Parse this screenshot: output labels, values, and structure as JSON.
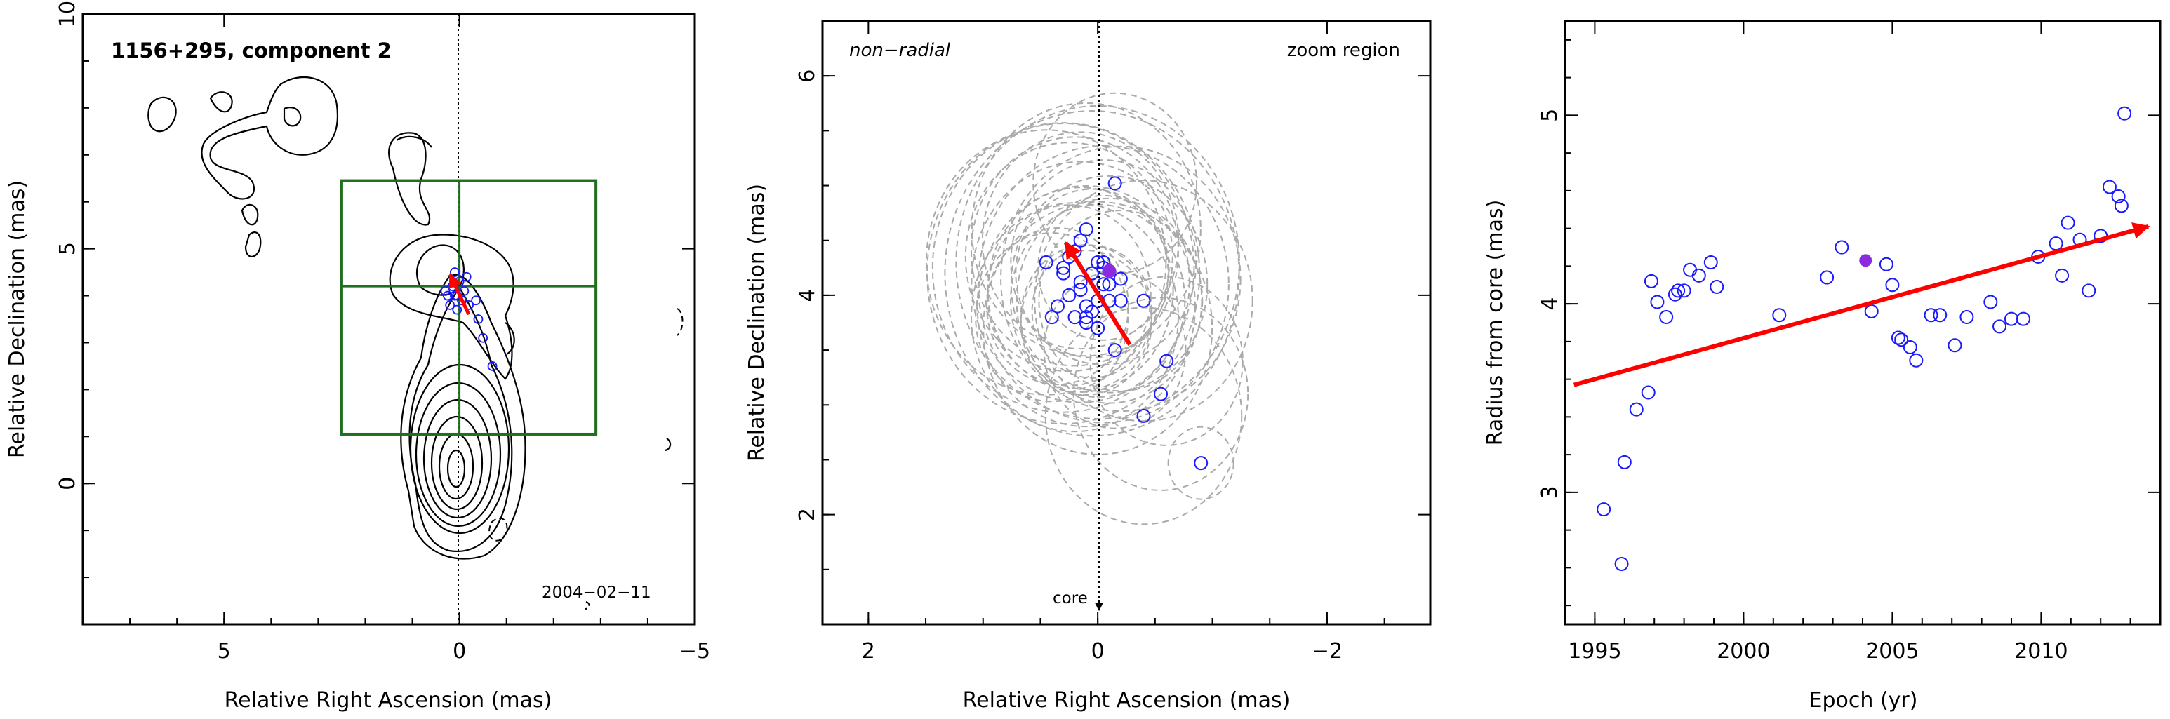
{
  "colors": {
    "axis": "#000000",
    "contour": "#000000",
    "marker_blue": "#1a1aff",
    "marker_purple": "#8a2be2",
    "arrow_red": "#ff0000",
    "zoom_box_green": "#1f6f1f",
    "ellipse_gray": "#aaaaaa"
  },
  "chart_data": [
    {
      "type": "contour",
      "title": "1156+295, component 2",
      "annotation": "2004−02−11",
      "xlabel": "Relative Right Ascension (mas)",
      "ylabel": "Relative Declination (mas)",
      "xlim": [
        8,
        -5
      ],
      "ylim": [
        -3,
        10
      ],
      "xticks": [
        5,
        0,
        -5
      ],
      "yticks": [
        0,
        5,
        10
      ],
      "crosshair_ra": 0,
      "zoom_box": {
        "ra": [
          2.5,
          -2.9
        ],
        "dec": [
          1.05,
          6.45
        ],
        "center": [
          0,
          4.2
        ]
      },
      "components_ra": [
        0.15,
        0.1,
        0.05,
        0.0,
        -0.05,
        -0.1,
        0.2,
        0.25,
        -0.15,
        -0.2,
        0.05,
        0.3,
        -0.35,
        -0.4,
        -0.5,
        -0.7,
        0.1
      ],
      "components_dec": [
        4.2,
        4.5,
        4.0,
        4.3,
        3.9,
        4.1,
        3.8,
        4.0,
        4.4,
        3.8,
        3.7,
        4.1,
        3.9,
        3.5,
        3.1,
        2.5,
        4.0
      ],
      "motion_arrow": {
        "from": [
          -0.2,
          3.6
        ],
        "to": [
          0.2,
          4.45
        ]
      }
    },
    {
      "type": "scatter",
      "annotations": [
        "non−radial",
        "zoom region",
        "core"
      ],
      "xlabel": "Relative Right Ascension (mas)",
      "ylabel": "Relative Declination (mas)",
      "xlim": [
        2.4,
        -2.9
      ],
      "ylim": [
        1.0,
        6.5
      ],
      "xticks": [
        2,
        0,
        -2
      ],
      "yticks": [
        2,
        4,
        6
      ],
      "points_ra": [
        0.1,
        0.2,
        0.3,
        0.15,
        0.05,
        0.0,
        -0.05,
        -0.1,
        -0.2,
        0.25,
        0.35,
        0.1,
        0.0,
        -0.05,
        0.05,
        0.2,
        0.4,
        0.3,
        0.15,
        0.1,
        0.0,
        -0.1,
        -0.2,
        -0.4,
        -0.6,
        -0.55,
        -0.4,
        -0.15,
        -0.9,
        0.45,
        0.25,
        0.05,
        -0.15,
        -0.05,
        0.1,
        0.15
      ],
      "points_dec": [
        4.6,
        4.4,
        4.25,
        4.05,
        4.2,
        4.3,
        4.25,
        4.1,
        4.15,
        4.0,
        3.9,
        3.9,
        3.95,
        4.1,
        3.85,
        3.8,
        3.8,
        4.2,
        4.5,
        3.75,
        3.7,
        3.95,
        3.95,
        3.95,
        3.4,
        3.1,
        2.9,
        3.5,
        2.47,
        4.3,
        4.35,
        4.2,
        5.02,
        4.3,
        3.8,
        4.12
      ],
      "average_position": [
        -0.1,
        4.22
      ],
      "motion_arrow": {
        "from": [
          -0.28,
          3.55
        ],
        "to": [
          0.28,
          4.48
        ]
      },
      "ellipse_center": [
        0.0,
        4.0
      ]
    },
    {
      "type": "scatter",
      "xlabel": "Epoch (yr)",
      "ylabel": "Radius from core (mas)",
      "xlim": [
        1994,
        2014
      ],
      "ylim": [
        2.3,
        5.5
      ],
      "xticks": [
        1995,
        2000,
        2005,
        2010
      ],
      "yticks": [
        3,
        4,
        5
      ],
      "x": [
        1995.3,
        1995.9,
        1996.0,
        1996.4,
        1996.8,
        1996.9,
        1997.1,
        1997.4,
        1997.7,
        1997.8,
        1998.0,
        1998.2,
        1998.5,
        1998.9,
        1999.1,
        2001.2,
        2002.8,
        2003.3,
        2004.3,
        2004.8,
        2005.0,
        2005.2,
        2005.3,
        2005.6,
        2005.8,
        2006.3,
        2006.6,
        2007.1,
        2007.5,
        2008.3,
        2008.6,
        2009.0,
        2009.4,
        2009.9,
        2010.5,
        2010.7,
        2010.9,
        2011.3,
        2011.6,
        2012.0,
        2012.3,
        2012.6,
        2012.7,
        2012.8
      ],
      "y": [
        2.91,
        2.62,
        3.16,
        3.44,
        3.53,
        4.12,
        4.01,
        3.93,
        4.05,
        4.07,
        4.07,
        4.18,
        4.15,
        4.22,
        4.09,
        3.94,
        4.14,
        4.3,
        3.96,
        4.21,
        4.1,
        3.82,
        3.81,
        3.77,
        3.7,
        3.94,
        3.94,
        3.78,
        3.93,
        4.01,
        3.88,
        3.92,
        3.92,
        4.25,
        4.32,
        4.15,
        4.43,
        4.34,
        4.07,
        4.36,
        4.62,
        4.57,
        4.52,
        5.01
      ],
      "highlight_point": [
        2004.1,
        4.23
      ],
      "trend_arrow": {
        "from": [
          1994.3,
          3.57
        ],
        "to": [
          2013.6,
          4.41
        ]
      }
    }
  ]
}
